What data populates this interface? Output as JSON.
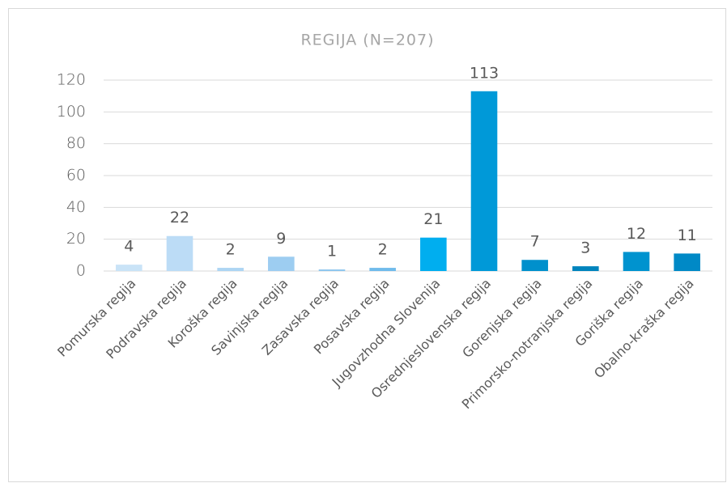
{
  "chart_data": {
    "type": "bar",
    "title": "REGIJA (N=207)",
    "categories": [
      "Pomurska regija",
      "Podravska regija",
      "Koroška regija",
      "Savinjska regija",
      "Zasavska regija",
      "Posavska regija",
      "Jugovzhodna Slovenija",
      "Osrednjeslovenska regija",
      "Gorenjska regija",
      "Primorsko-notranjska regija",
      "Goriška regija",
      "Obalno-kraška regija"
    ],
    "values": [
      4,
      22,
      2,
      9,
      1,
      2,
      21,
      113,
      7,
      3,
      12,
      11
    ],
    "colors": [
      "#c9e3f7",
      "#bcdcf6",
      "#add5f3",
      "#9dcdf1",
      "#8ec6ee",
      "#70bbeb",
      "#00aeef",
      "#0099d8",
      "#0090cc",
      "#0084bd",
      "#0093cf",
      "#0089c6"
    ],
    "ylim": [
      0,
      120
    ],
    "yticks": [
      0,
      20,
      40,
      60,
      80,
      100,
      120
    ],
    "grid": true
  }
}
